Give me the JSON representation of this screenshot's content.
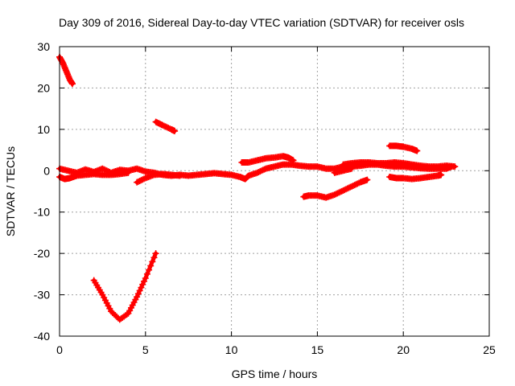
{
  "chart_data": {
    "type": "scatter",
    "title": "Day 309 of 2016, Sidereal Day-to-day VTEC variation (SDTVAR) for receiver osls",
    "xlabel": "GPS time / hours",
    "ylabel": "SDTVAR / TECUs",
    "xlim": [
      0,
      25
    ],
    "ylim": [
      -40,
      30
    ],
    "xticks": [
      0,
      5,
      10,
      15,
      20,
      25
    ],
    "yticks": [
      -40,
      -30,
      -20,
      -10,
      0,
      10,
      20,
      30
    ],
    "xtick_labels": [
      "0",
      "5",
      "10",
      "15",
      "20",
      "25"
    ],
    "ytick_labels": [
      "-40",
      "-30",
      "-20",
      "-10",
      "0",
      "10",
      "20",
      "30"
    ],
    "grid": true,
    "legend": "none",
    "marker": "plus",
    "color": "#ff0000",
    "series": [
      {
        "values": [
          [
            0.0,
            27.5
          ],
          [
            0.2,
            26.0
          ],
          [
            0.4,
            24.0
          ],
          [
            0.6,
            22.0
          ],
          [
            0.75,
            21.0
          ]
        ]
      },
      {
        "values": [
          [
            5.6,
            11.8
          ],
          [
            6.0,
            11.0
          ],
          [
            6.5,
            10.0
          ],
          [
            6.7,
            9.6
          ]
        ]
      },
      {
        "values": [
          [
            2.0,
            -26.5
          ],
          [
            2.5,
            -30.0
          ],
          [
            3.0,
            -34.0
          ],
          [
            3.5,
            -36.0
          ],
          [
            4.0,
            -34.5
          ],
          [
            4.5,
            -30.5
          ],
          [
            5.0,
            -26.0
          ],
          [
            5.6,
            -20.0
          ]
        ]
      },
      {
        "values": [
          [
            0.0,
            0.5
          ],
          [
            0.5,
            0.0
          ],
          [
            1.0,
            -0.5
          ],
          [
            1.5,
            0.3
          ],
          [
            2.0,
            -0.3
          ],
          [
            2.5,
            0.5
          ],
          [
            3.0,
            -0.5
          ],
          [
            3.5,
            0.2
          ],
          [
            4.0,
            0.0
          ],
          [
            4.5,
            0.5
          ],
          [
            5.0,
            -0.2
          ],
          [
            5.5,
            -0.5
          ],
          [
            6.0,
            -1.0
          ],
          [
            6.5,
            -1.2
          ],
          [
            7.0,
            -1.0
          ],
          [
            7.5,
            -1.2
          ],
          [
            8.0,
            -1.0
          ],
          [
            8.5,
            -0.8
          ],
          [
            9.0,
            -0.6
          ],
          [
            9.5,
            -0.8
          ],
          [
            10.0,
            -1.0
          ],
          [
            10.5,
            -1.5
          ],
          [
            10.8,
            -2.0
          ],
          [
            11.0,
            -1.2
          ],
          [
            11.5,
            -0.5
          ],
          [
            12.0,
            0.5
          ],
          [
            12.5,
            1.0
          ],
          [
            13.0,
            1.5
          ],
          [
            13.5,
            1.5
          ],
          [
            14.0,
            1.2
          ],
          [
            14.5,
            1.0
          ],
          [
            15.0,
            1.0
          ],
          [
            15.5,
            0.5
          ],
          [
            16.0,
            0.5
          ],
          [
            16.5,
            1.0
          ],
          [
            17.0,
            1.0
          ],
          [
            17.5,
            1.2
          ],
          [
            18.0,
            1.5
          ],
          [
            18.5,
            1.5
          ],
          [
            19.0,
            1.2
          ],
          [
            19.5,
            1.0
          ],
          [
            20.0,
            1.0
          ],
          [
            20.5,
            0.8
          ],
          [
            21.0,
            0.6
          ],
          [
            21.5,
            0.5
          ],
          [
            22.0,
            0.5
          ],
          [
            22.5,
            0.5
          ],
          [
            22.8,
            1.0
          ]
        ]
      },
      {
        "values": [
          [
            0.0,
            -1.5
          ],
          [
            0.3,
            -2.0
          ],
          [
            0.6,
            -1.8
          ],
          [
            1.0,
            -1.2
          ],
          [
            1.5,
            -1.0
          ],
          [
            2.0,
            -0.8
          ],
          [
            2.5,
            -1.0
          ],
          [
            3.0,
            -1.0
          ],
          [
            3.5,
            -0.8
          ],
          [
            4.0,
            -0.5
          ]
        ]
      },
      {
        "values": [
          [
            4.5,
            -2.8
          ],
          [
            5.0,
            -1.8
          ],
          [
            5.5,
            -1.0
          ],
          [
            6.0,
            -0.8
          ],
          [
            6.5,
            -1.0
          ],
          [
            7.0,
            -1.2
          ]
        ]
      },
      {
        "values": [
          [
            10.6,
            2.0
          ],
          [
            11.0,
            2.0
          ],
          [
            11.5,
            2.5
          ],
          [
            12.0,
            3.0
          ],
          [
            12.5,
            3.2
          ],
          [
            13.0,
            3.5
          ],
          [
            13.3,
            3.2
          ],
          [
            13.6,
            2.5
          ]
        ]
      },
      {
        "values": [
          [
            14.2,
            -6.3
          ],
          [
            14.5,
            -6.0
          ],
          [
            15.0,
            -6.0
          ],
          [
            15.5,
            -6.5
          ],
          [
            16.0,
            -5.8
          ],
          [
            16.5,
            -4.8
          ],
          [
            17.0,
            -3.8
          ],
          [
            17.5,
            -2.8
          ],
          [
            17.9,
            -2.2
          ]
        ]
      },
      {
        "values": [
          [
            16.5,
            1.5
          ],
          [
            17.0,
            1.8
          ],
          [
            17.5,
            2.0
          ],
          [
            18.0,
            2.0
          ],
          [
            18.5,
            1.8
          ],
          [
            19.0,
            1.8
          ],
          [
            19.5,
            2.0
          ],
          [
            20.0,
            1.8
          ],
          [
            20.5,
            1.5
          ],
          [
            21.0,
            1.2
          ],
          [
            21.5,
            1.0
          ],
          [
            22.0,
            1.0
          ],
          [
            22.5,
            1.2
          ],
          [
            23.0,
            1.0
          ]
        ]
      },
      {
        "values": [
          [
            16.0,
            -0.5
          ],
          [
            16.5,
            0.0
          ],
          [
            17.0,
            0.5
          ]
        ]
      },
      {
        "values": [
          [
            19.2,
            6.0
          ],
          [
            19.6,
            6.0
          ],
          [
            20.0,
            5.8
          ],
          [
            20.5,
            5.3
          ],
          [
            20.8,
            4.8
          ]
        ]
      },
      {
        "values": [
          [
            19.2,
            -1.5
          ],
          [
            19.6,
            -1.8
          ],
          [
            20.0,
            -1.8
          ],
          [
            20.5,
            -2.0
          ],
          [
            21.0,
            -1.8
          ],
          [
            21.5,
            -1.5
          ],
          [
            22.0,
            -1.2
          ],
          [
            22.2,
            -1.0
          ]
        ]
      }
    ]
  }
}
